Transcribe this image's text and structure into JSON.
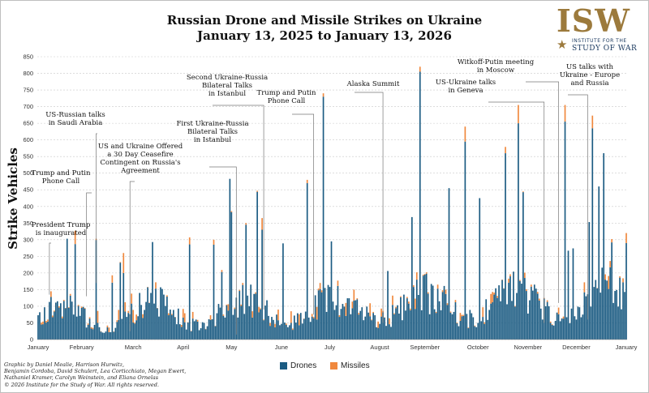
{
  "chart_data": {
    "type": "bar",
    "stacked": true,
    "title_line1": "Russian Drone and Missile Strikes on Ukraine",
    "title_line2": "January 13, 2025 to January 13, 2026",
    "ylabel": "Strike Vehicles",
    "xlabel": "",
    "ylim": [
      0,
      850
    ],
    "yticks": [
      "0",
      "50",
      "100",
      "150",
      "200",
      "250",
      "300",
      "350",
      "400",
      "450",
      "500",
      "550",
      "600",
      "650",
      "700",
      "750",
      "800",
      "850"
    ],
    "date_range": [
      "2025-01-13",
      "2026-01-13"
    ],
    "grid": "horizontal dashed",
    "legend_position": "bottom-center",
    "month_labels": [
      {
        "label": "January",
        "date": "2025-01-13"
      },
      {
        "label": "February",
        "date": "2025-02-09"
      },
      {
        "label": "March",
        "date": "2025-03-13"
      },
      {
        "label": "April",
        "date": "2025-04-13"
      },
      {
        "label": "May",
        "date": "2025-05-13"
      },
      {
        "label": "June",
        "date": "2025-06-13"
      },
      {
        "label": "July",
        "date": "2025-07-13"
      },
      {
        "label": "August",
        "date": "2025-08-13"
      },
      {
        "label": "September",
        "date": "2025-09-10"
      },
      {
        "label": "October",
        "date": "2025-10-13"
      },
      {
        "label": "November",
        "date": "2025-11-13"
      },
      {
        "label": "December",
        "date": "2025-12-13"
      },
      {
        "label": "January",
        "date": "2026-01-13"
      }
    ],
    "series": [
      {
        "name": "Drones",
        "color": "#1b5b82"
      },
      {
        "name": "Missiles",
        "color": "#f0883d"
      }
    ],
    "notable_days": [
      {
        "date": "2025-03-07",
        "drones": 200,
        "missiles": 60
      },
      {
        "date": "2025-06-01",
        "drones": 330,
        "missiles": 35
      },
      {
        "date": "2025-06-29",
        "drones": 470,
        "missiles": 10
      },
      {
        "date": "2025-07-09",
        "drones": 730,
        "missiles": 10
      },
      {
        "date": "2025-09-07",
        "drones": 805,
        "missiles": 15
      },
      {
        "date": "2025-10-05",
        "drones": 595,
        "missiles": 45
      },
      {
        "date": "2025-11-07",
        "drones": 650,
        "missiles": 55
      },
      {
        "date": "2025-12-06",
        "drones": 655,
        "missiles": 50
      },
      {
        "date": "2025-12-23",
        "drones": 635,
        "missiles": 38
      },
      {
        "date": "2026-01-13",
        "drones": 290,
        "missiles": 30
      }
    ],
    "annotations": [
      {
        "lines": [
          "President Trump",
          "is inaugurated"
        ],
        "date": "2025-01-20",
        "value": 135
      },
      {
        "lines": [
          "Trump and Putin",
          "Phone Call"
        ],
        "date": "2025-02-12",
        "value": 130
      },
      {
        "lines": [
          "US-Russian talks",
          "in Saudi Arabia"
        ],
        "date": "2025-02-18",
        "value": 170
      },
      {
        "lines": [
          "US and Ukraine Offered",
          "a 30 Day Ceasefire",
          "Contingent on Russia's",
          "Agreement"
        ],
        "date": "2025-03-11",
        "value": 25
      },
      {
        "lines": [
          "First Ukraine-Russia",
          "Bilateral Talks",
          "in Istanbul"
        ],
        "date": "2025-05-16",
        "value": 15
      },
      {
        "lines": [
          "Second Ukraine-Russia",
          "Bilateral Talks",
          "in Istanbul"
        ],
        "date": "2025-06-02",
        "value": 90
      },
      {
        "lines": [
          "Trump and Putin",
          "Phone Call"
        ],
        "date": "2025-07-03",
        "value": 75
      },
      {
        "lines": [
          "Alaska Summit"
        ],
        "date": "2025-08-15",
        "value": 50
      },
      {
        "lines": [
          "US-Ukraine talks",
          "in Geneva"
        ],
        "date": "2025-11-23",
        "value": 50
      },
      {
        "lines": [
          "Witkoff-Putin meeting",
          "in Moscow"
        ],
        "date": "2025-12-02",
        "value": 110
      },
      {
        "lines": [
          "US talks with",
          "Ukraine - Europe",
          "and Russia"
        ],
        "date": "2025-12-20",
        "value": 60
      }
    ]
  },
  "legend": {
    "drones": "Drones",
    "missiles": "Missiles"
  },
  "logo": {
    "text_main": "ISW",
    "text_sub1": "INSTITUTE FOR THE",
    "text_sub2": "STUDY OF WAR",
    "star": "★"
  },
  "credit": [
    "Graphic by Daniel Mealie, Harrison Hurwitz,",
    "Benjamin Cordoba, David Schulert, Lea Corticchiato, Megan Ewert,",
    "Nathaniel Kramer, Carolyn Weinstein, and Eliana Ornelas",
    "© 2026 Institute for the Study of War. All rights reserved."
  ]
}
